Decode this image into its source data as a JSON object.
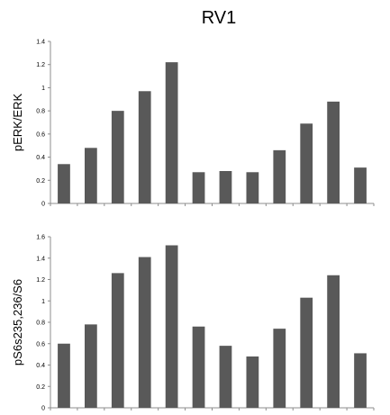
{
  "figure_title": "RV1",
  "chart_data": [
    {
      "type": "bar",
      "title": "RV1",
      "ylabel": "pERK/ERK",
      "xlabel": "",
      "ylim": [
        0,
        1.4
      ],
      "y_ticks": [
        "0",
        "0.2",
        "0.4",
        "0.6",
        "0.8",
        "1",
        "1.2",
        "1.4"
      ],
      "values": [
        0.34,
        0.48,
        0.8,
        0.97,
        1.22,
        0.27,
        0.28,
        0.27,
        0.46,
        0.69,
        0.88,
        0.31
      ],
      "bar_color": "#595959",
      "grid": false
    },
    {
      "type": "bar",
      "title": "",
      "ylabel": "pS6s235,236/S6",
      "xlabel": "",
      "ylim": [
        0,
        1.6
      ],
      "y_ticks": [
        "0",
        "0.2",
        "0.4",
        "0.6",
        "0.8",
        "1",
        "1.2",
        "1.4",
        "1.6"
      ],
      "values": [
        0.6,
        0.78,
        1.26,
        1.41,
        1.52,
        0.76,
        0.58,
        0.48,
        0.74,
        1.03,
        1.24,
        0.51
      ],
      "bar_color": "#595959",
      "grid": false
    }
  ]
}
